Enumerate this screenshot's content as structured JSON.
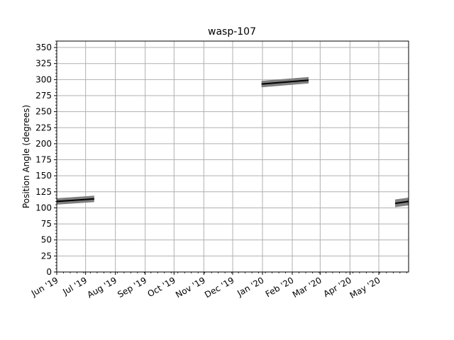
{
  "chart_data": {
    "type": "line",
    "title": "wasp-107",
    "xlabel": "",
    "ylabel": "Position Angle (degrees)",
    "x_axis_type": "date",
    "xlim": [
      "2019-06-01",
      "2020-06-01"
    ],
    "ylim": [
      0,
      360
    ],
    "yticks": [
      0,
      25,
      50,
      75,
      100,
      125,
      150,
      175,
      200,
      225,
      250,
      275,
      300,
      325,
      350
    ],
    "ytick_labels": [
      "0",
      "25",
      "50",
      "75",
      "100",
      "125",
      "150",
      "175",
      "200",
      "225",
      "250",
      "275",
      "300",
      "325",
      "350"
    ],
    "xticks": [
      "2019-06-01",
      "2019-07-01",
      "2019-08-01",
      "2019-09-01",
      "2019-10-01",
      "2019-11-01",
      "2019-12-01",
      "2020-01-01",
      "2020-02-01",
      "2020-03-01",
      "2020-04-01",
      "2020-05-01"
    ],
    "xtick_labels": [
      "Jun '19",
      "Jul '19",
      "Aug '19",
      "Sep '19",
      "Oct '19",
      "Nov '19",
      "Dec '19",
      "Jan '20",
      "Feb '20",
      "Mar '20",
      "Apr '20",
      "May '20"
    ],
    "grid": true,
    "colors": {
      "line": "#000000",
      "band": "#7f7f7f",
      "grid": "#b0b0b0"
    },
    "series": [
      {
        "segments": [
          {
            "x": [
              "2019-06-01",
              "2019-07-10"
            ],
            "y": [
              110,
              114
            ],
            "band_half_width": 5
          },
          {
            "x": [
              "2019-12-31",
              "2020-02-18"
            ],
            "y": [
              293,
              299
            ],
            "band_half_width": 5
          },
          {
            "x": [
              "2020-05-18",
              "2020-06-01"
            ],
            "y": [
              107,
              110
            ],
            "band_half_width": 6
          }
        ]
      }
    ]
  }
}
